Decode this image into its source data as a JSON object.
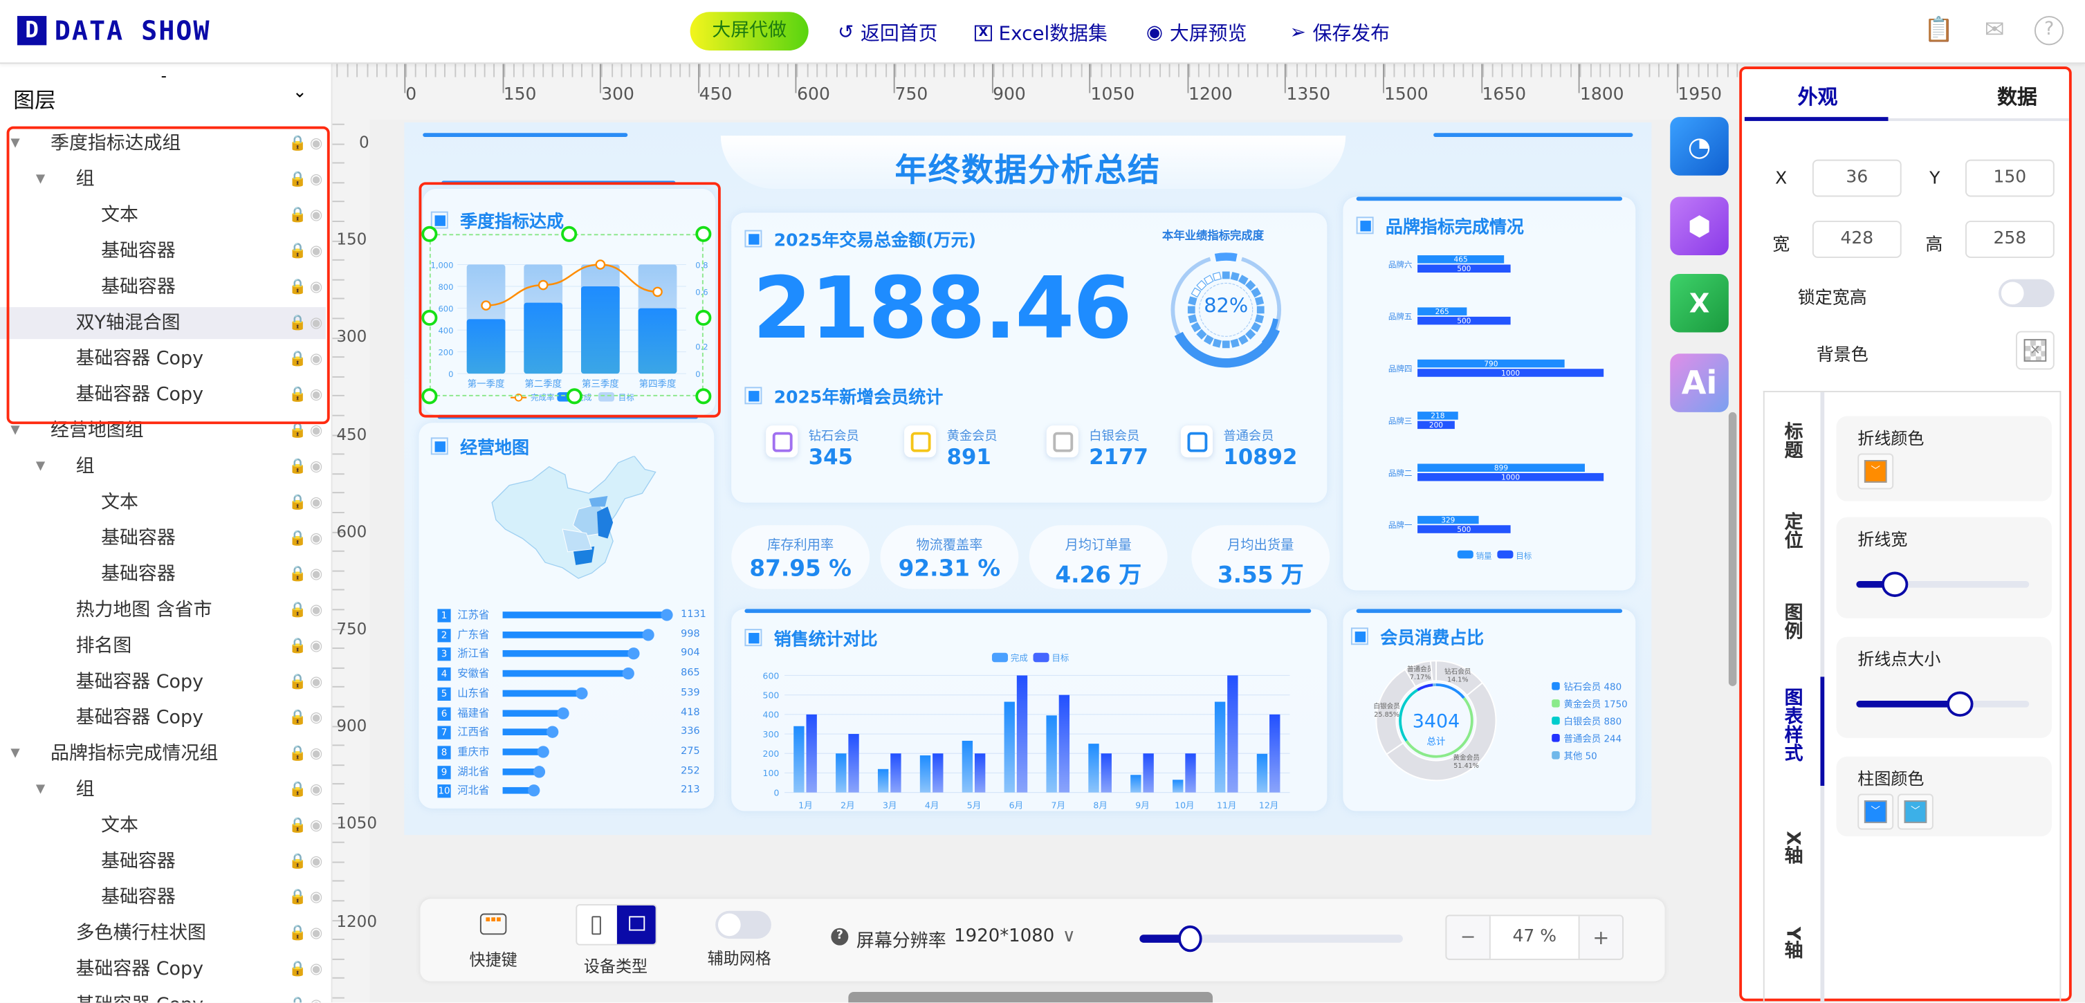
{
  "header": {
    "logo_letter": "D",
    "logo_text": "DATA SHOW",
    "promo_button": "大屏代做",
    "nav": [
      {
        "icon": "undo-icon",
        "label": "返回首页"
      },
      {
        "icon": "excel-icon",
        "label": "Excel数据集"
      },
      {
        "icon": "eye-icon",
        "label": "大屏预览"
      },
      {
        "icon": "send-icon",
        "label": "保存发布"
      }
    ],
    "right_icons": [
      "clipboard-icon",
      "mail-icon",
      "help-icon"
    ]
  },
  "sidebar": {
    "collapse_dash": "-",
    "title": "图层",
    "layers": [
      {
        "label": "季度指标达成组",
        "level": 0,
        "caret": true
      },
      {
        "label": "组",
        "level": 1,
        "caret": true
      },
      {
        "label": "文本",
        "level": 2
      },
      {
        "label": "基础容器",
        "level": 2
      },
      {
        "label": "基础容器",
        "level": 2
      },
      {
        "label": "双Y轴混合图",
        "level": 1,
        "selected": true
      },
      {
        "label": "基础容器 Copy",
        "level": 1
      },
      {
        "label": "基础容器 Copy",
        "level": 1
      },
      {
        "label": "经营地图组",
        "level": 0,
        "caret": true
      },
      {
        "label": "组",
        "level": 1,
        "caret": true
      },
      {
        "label": "文本",
        "level": 2
      },
      {
        "label": "基础容器",
        "level": 2
      },
      {
        "label": "基础容器",
        "level": 2
      },
      {
        "label": "热力地图 含省市",
        "level": 1
      },
      {
        "label": "排名图",
        "level": 1
      },
      {
        "label": "基础容器 Copy",
        "level": 1
      },
      {
        "label": "基础容器 Copy",
        "level": 1
      },
      {
        "label": "品牌指标完成情况组",
        "level": 0,
        "caret": true
      },
      {
        "label": "组",
        "level": 1,
        "caret": true
      },
      {
        "label": "文本",
        "level": 2
      },
      {
        "label": "基础容器",
        "level": 2
      },
      {
        "label": "基础容器",
        "level": 2
      },
      {
        "label": "多色横行柱状图",
        "level": 1
      },
      {
        "label": "基础容器 Copy",
        "level": 1
      },
      {
        "label": "基础容器 Copy",
        "level": 1
      }
    ]
  },
  "rulers": {
    "horizontal": [
      "0",
      "150",
      "300",
      "450",
      "600",
      "750",
      "900",
      "1050",
      "1200",
      "1350",
      "1500",
      "1650",
      "1800",
      "1950"
    ],
    "vertical": [
      "0",
      "150",
      "300",
      "450",
      "600",
      "750",
      "900",
      "1050",
      "1200"
    ]
  },
  "dashboard": {
    "title": "年终数据分析总结",
    "quarter_title": "季度指标达成",
    "map_title": "经营地图",
    "trade_title": "2025年交易总金额(万元)",
    "trade_value": "2188.46",
    "gauge_label": "本年业绩指标完成度",
    "gauge_value": "82%",
    "gauge_percent": 82,
    "member_title": "2025年新增会员统计",
    "members": [
      {
        "label": "钻石会员",
        "value": "345",
        "color": "#a070f0"
      },
      {
        "label": "黄金会员",
        "value": "891",
        "color": "#f5c518"
      },
      {
        "label": "白银会员",
        "value": "2177",
        "color": "#b8b8b8"
      },
      {
        "label": "普通会员",
        "value": "10892",
        "color": "#1e88f0"
      }
    ],
    "kpis": [
      {
        "label": "库存利用率",
        "value": "87.95 %"
      },
      {
        "label": "物流覆盖率",
        "value": "92.31 %"
      },
      {
        "label": "月均订单量",
        "value": "4.26 万"
      },
      {
        "label": "月均出货量",
        "value": "3.55 万"
      }
    ],
    "sales_title": "销售统计对比",
    "brand_title": "品牌指标完成情况",
    "pie_title": "会员消费占比"
  },
  "chart_data": [
    {
      "type": "bar",
      "name": "quarter",
      "categories": [
        "第一季度",
        "第二季度",
        "第三季度",
        "第四季度"
      ],
      "series": [
        {
          "name": "完成",
          "kind": "bar",
          "values": [
            500,
            650,
            800,
            600
          ],
          "color": "#1e8cff"
        },
        {
          "name": "目标",
          "kind": "bar",
          "values": [
            1000,
            1000,
            1000,
            1000
          ],
          "color": "#a8cdf7"
        },
        {
          "name": "完成率",
          "kind": "line",
          "axis": "right",
          "values": [
            0.5,
            0.65,
            0.8,
            0.6
          ],
          "color": "#ff8c00"
        }
      ],
      "ylim": [
        0,
        1000
      ],
      "yticks": [
        "0",
        "200",
        "400",
        "600",
        "800",
        "1,000"
      ],
      "y2lim": [
        0,
        0.8
      ],
      "y2ticks": [
        "0",
        "0.2",
        "0.4",
        "0.6",
        "0.8"
      ],
      "legend": "bottom"
    },
    {
      "type": "bar",
      "name": "ranking",
      "orientation": "horizontal",
      "ranks": [
        "1",
        "2",
        "3",
        "4",
        "5",
        "6",
        "7",
        "8",
        "9",
        "10"
      ],
      "categories": [
        "江苏省",
        "广东省",
        "浙江省",
        "安徽省",
        "山东省",
        "福建省",
        "江西省",
        "重庆市",
        "湖北省",
        "河北省"
      ],
      "values": [
        1131,
        998,
        904,
        865,
        539,
        418,
        336,
        275,
        252,
        213
      ]
    },
    {
      "type": "bar",
      "name": "sales",
      "categories": [
        "1月",
        "2月",
        "3月",
        "4月",
        "5月",
        "6月",
        "7月",
        "8月",
        "9月",
        "10月",
        "11月",
        "12月"
      ],
      "series": [
        {
          "name": "完成",
          "values": [
            340,
            200,
            120,
            190,
            265,
            465,
            395,
            250,
            90,
            65,
            465,
            198
          ],
          "color": "#1e8cff"
        },
        {
          "name": "目标",
          "values": [
            400,
            300,
            200,
            200,
            200,
            600,
            500,
            200,
            200,
            200,
            600,
            400
          ],
          "color": "#2a55ff"
        }
      ],
      "ylim": [
        0,
        600
      ],
      "yticks": [
        "0",
        "100",
        "200",
        "300",
        "400",
        "500",
        "600"
      ],
      "legend": "top",
      "grid": true
    },
    {
      "type": "bar",
      "name": "brand",
      "orientation": "horizontal",
      "categories": [
        "品牌六",
        "品牌五",
        "品牌四",
        "品牌三",
        "品牌二",
        "品牌一"
      ],
      "series": [
        {
          "name": "销量",
          "values": [
            465,
            265,
            790,
            218,
            899,
            329
          ],
          "color": "#1e8cff"
        },
        {
          "name": "目标",
          "values": [
            500,
            500,
            1000,
            200,
            1000,
            500
          ],
          "color": "#2255ff"
        }
      ],
      "xlim": [
        0,
        1000
      ],
      "legend": "bottom"
    },
    {
      "type": "pie",
      "name": "member-share",
      "center_value": "3404",
      "center_label": "总计",
      "categories": [
        "钻石会员",
        "黄金会员",
        "白银会员",
        "普通会员",
        "其他"
      ],
      "values": [
        480,
        1750,
        880,
        244,
        50
      ],
      "slice_labels": [
        "14.1%",
        "51.41%",
        "25.85%",
        "7.17%",
        ""
      ],
      "colors": [
        "#1e8cff",
        "#8aea8a",
        "#00cccc",
        "#2233ff",
        "#70b8ea"
      ],
      "legend": "right"
    }
  ],
  "right_icons": [
    {
      "icon": "image-icon",
      "color": "#1e7ee8"
    },
    {
      "icon": "cubes-icon",
      "color": "#a64df0"
    },
    {
      "icon": "excel-icon",
      "color": "#22b04a",
      "label": "X"
    },
    {
      "icon": "ai-icon",
      "color": "#c88ae8",
      "label": "Ai"
    }
  ],
  "props": {
    "tabs": [
      "外观",
      "数据"
    ],
    "x_label": "X",
    "x": "36",
    "y_label": "Y",
    "y": "150",
    "w_label": "宽",
    "w": "428",
    "h_label": "高",
    "h": "258",
    "lock_label": "锁定宽高",
    "lock_on": false,
    "bg_label": "背景色",
    "side_tabs": [
      "标题",
      "定位",
      "图例",
      "图表样式",
      "X轴",
      "Y轴"
    ],
    "active_side_tab": "图表样式",
    "line_color_label": "折线颜色",
    "line_color": "#ff8c00",
    "line_width_label": "折线宽",
    "line_width_level": 0.22,
    "point_size_label": "折线点大小",
    "point_size_level": 0.6,
    "bar_color_label": "柱图颜色",
    "bar_colors": [
      "#1e8cff",
      "#3cb0e8"
    ]
  },
  "toolbar": {
    "shortcut_label": "快捷键",
    "device_label": "设备类型",
    "grid_label": "辅助网格",
    "resolution_label": "屏幕分辨率",
    "resolution_value": "1920*1080",
    "zoom_level": 0.19,
    "zoom_minus": "−",
    "zoom_value": "47 %",
    "zoom_plus": "+"
  }
}
